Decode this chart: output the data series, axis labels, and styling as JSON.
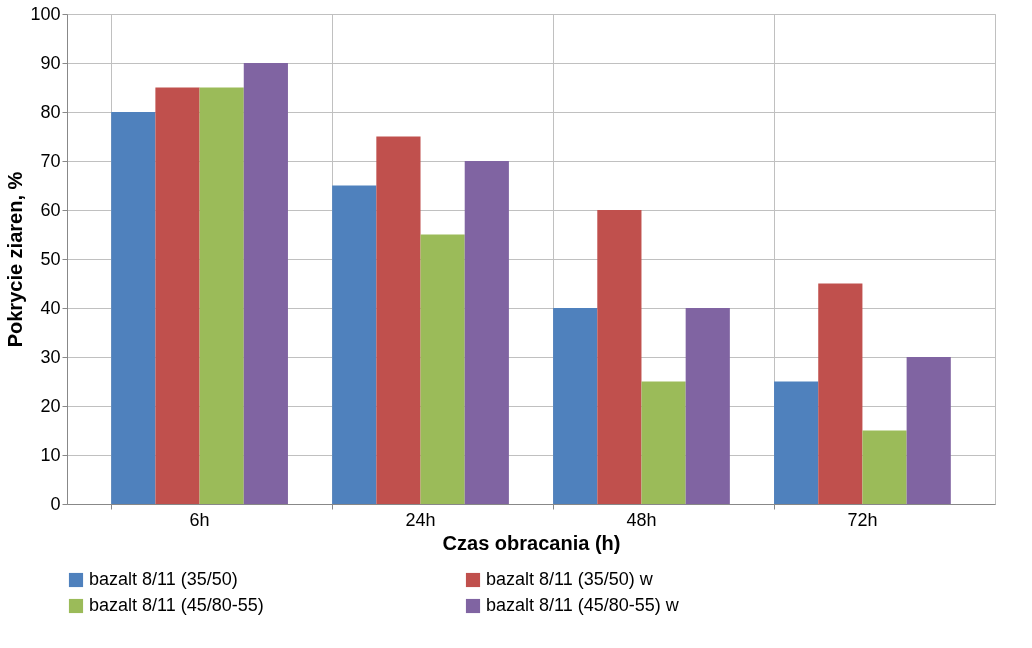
{
  "chart_data": {
    "type": "bar",
    "xlabel": "Czas obracania (h)",
    "ylabel": "Pokrycie ziaren, %",
    "categories": [
      "6h",
      "24h",
      "48h",
      "72h"
    ],
    "series": [
      {
        "name": "bazalt 8/11 (35/50)",
        "color": "#4f81bd",
        "values": [
          80,
          65,
          40,
          25
        ]
      },
      {
        "name": "bazalt 8/11 (35/50) w",
        "color": "#c0504d",
        "values": [
          85,
          75,
          60,
          45
        ]
      },
      {
        "name": "bazalt 8/11 (45/80-55)",
        "color": "#9bbb59",
        "values": [
          85,
          55,
          25,
          15
        ]
      },
      {
        "name": "bazalt 8/11 (45/80-55) w",
        "color": "#8064a2",
        "values": [
          90,
          70,
          40,
          30
        ]
      }
    ],
    "ylim": [
      0,
      100
    ],
    "yticks": [
      0,
      10,
      20,
      30,
      40,
      50,
      60,
      70,
      80,
      90,
      100
    ],
    "grid": true,
    "legend": "bottom"
  }
}
